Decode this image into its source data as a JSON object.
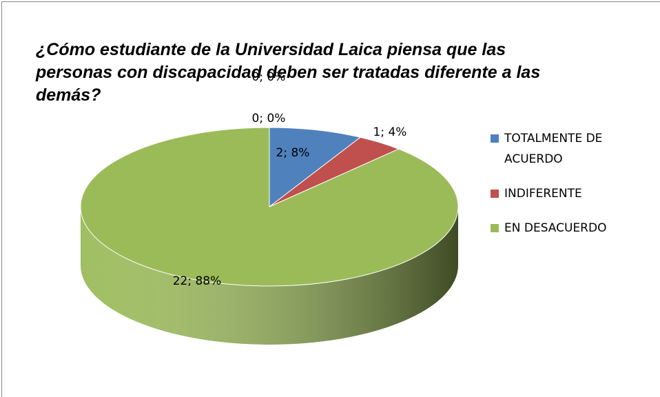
{
  "chart_data": {
    "type": "pie",
    "title": "¿Cómo estudiante de la Universidad Laica piensa que las personas con discapacidad deben ser tratadas diferente a las demás?",
    "categories": [
      "TOTALMENTE DE ACUERDO",
      "INDIFERENTE",
      "EN DESACUERDO",
      null,
      null
    ],
    "values": [
      2,
      1,
      22,
      0,
      0
    ],
    "value_labels": [
      "2; 8%",
      "1; 4%",
      "22; 88%",
      "0; 0%",
      "0; 0%"
    ],
    "colors": [
      "#4f81bd",
      "#c0504d",
      "#9bbb59",
      "#8064a2",
      "#4bacc6"
    ],
    "legend": "right"
  }
}
